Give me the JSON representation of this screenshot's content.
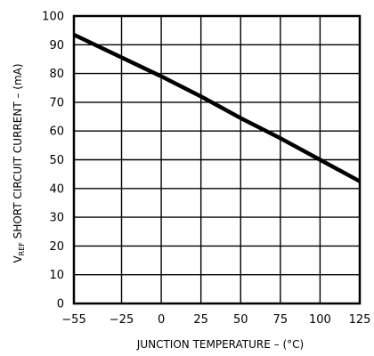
{
  "chart_data": {
    "type": "line",
    "title": "",
    "xlabel": "JUNCTION TEMPERATURE – (°C)",
    "ylabel": {
      "main": "V",
      "subscript": "REF",
      "rest": "  SHORT CIRCUIT CURRENT – (mA)"
    },
    "xlim": [
      -55,
      125
    ],
    "ylim": [
      0,
      100
    ],
    "x_ticks": [
      -55,
      -25,
      0,
      25,
      50,
      75,
      100,
      125
    ],
    "y_ticks": [
      0,
      10,
      20,
      30,
      40,
      50,
      60,
      70,
      80,
      90,
      100
    ],
    "x_tick_labels": [
      "−55",
      "−25",
      "0",
      "25",
      "50",
      "75",
      "100",
      "125"
    ],
    "y_tick_labels": [
      "0",
      "10",
      "20",
      "30",
      "40",
      "50",
      "60",
      "70",
      "80",
      "90",
      "100"
    ],
    "grid": true,
    "legend": "none",
    "series": [
      {
        "x": [
          -55,
          0,
          25,
          50,
          75,
          100,
          125
        ],
        "y": [
          93.5,
          79,
          72,
          64.5,
          57.5,
          50,
          42.5
        ]
      }
    ],
    "colors": {
      "line": "#000000",
      "grid": "#000000",
      "frame": "#000000"
    }
  }
}
